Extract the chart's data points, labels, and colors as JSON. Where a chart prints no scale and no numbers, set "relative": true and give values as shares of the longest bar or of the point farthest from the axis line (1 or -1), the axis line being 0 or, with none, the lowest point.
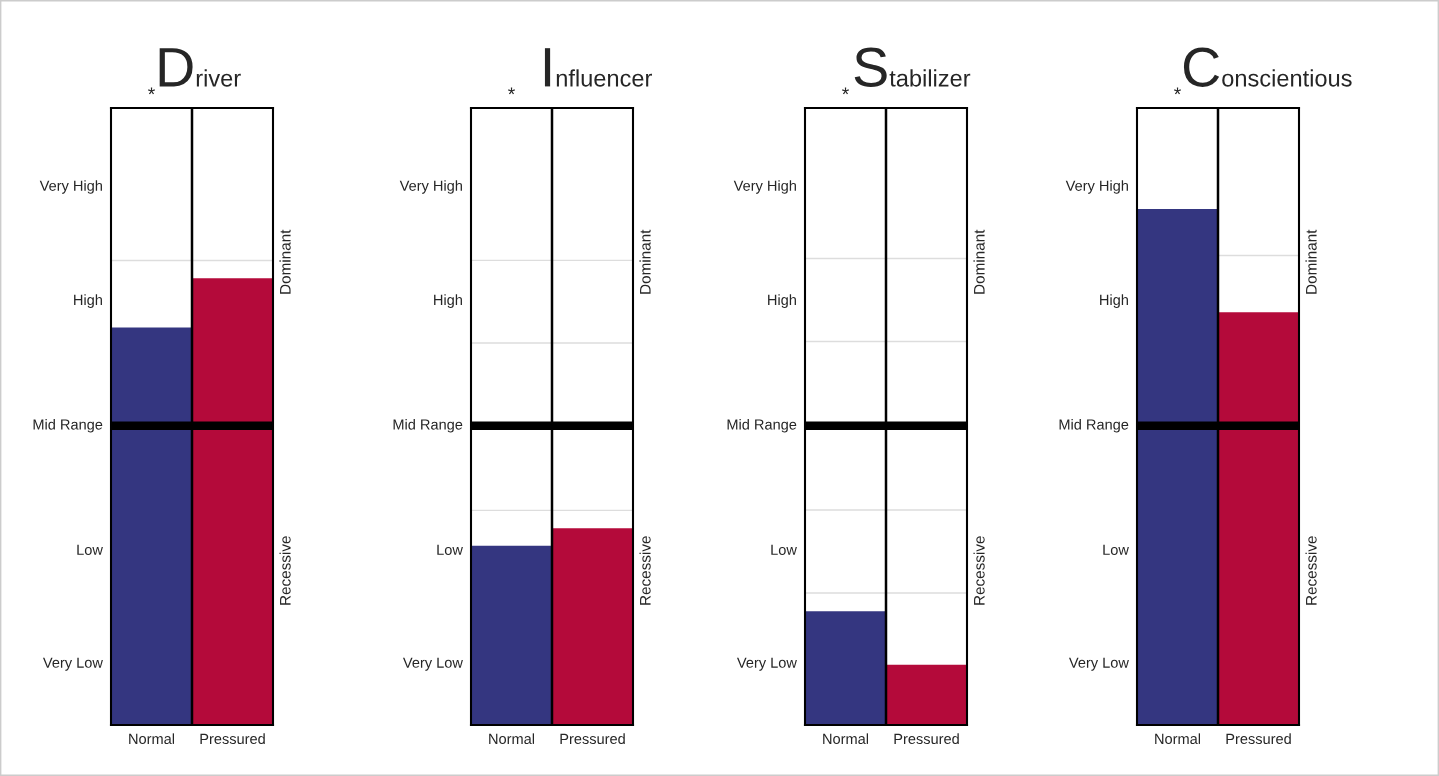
{
  "chart_data": [
    {
      "type": "bar",
      "title": "Driver",
      "categories": [
        "Normal",
        "Pressured"
      ],
      "values": [
        0.89,
        1
      ],
      "colors": [
        "#343680",
        "#b40a3a"
      ],
      "relative": true,
      "grid": false,
      "ref_lines": [
        {
          "axis": "y",
          "value": 1.04,
          "color": "#dddddd"
        },
        {
          "axis": "y",
          "value": 0.67,
          "color": "#000000"
        }
      ],
      "annotations": [
        "*",
        "Very High",
        "High",
        "Mid Range",
        "Low",
        "Very Low",
        "Dominant",
        "Recessive"
      ]
    },
    {
      "type": "bar",
      "title": "Influencer",
      "categories": [
        "Normal",
        "Pressured"
      ],
      "values": [
        0.91,
        1
      ],
      "colors": [
        "#343680",
        "#b40a3a"
      ],
      "relative": true,
      "grid": false,
      "ref_lines": [
        {
          "axis": "y",
          "value": 2.36,
          "color": "#dddddd"
        },
        {
          "axis": "y",
          "value": 1.94,
          "color": "#dddddd"
        },
        {
          "axis": "y",
          "value": 1.09,
          "color": "#dddddd"
        },
        {
          "axis": "y",
          "value": 1.52,
          "color": "#000000"
        }
      ],
      "annotations": [
        "*",
        "Very High",
        "High",
        "Mid Range",
        "Low",
        "Very Low",
        "Dominant",
        "Recessive"
      ]
    },
    {
      "type": "bar",
      "title": "Stabilizer",
      "categories": [
        "Normal",
        "Pressured"
      ],
      "values": [
        1,
        0.53
      ],
      "colors": [
        "#343680",
        "#b40a3a"
      ],
      "relative": true,
      "grid": false,
      "ref_lines": [
        {
          "axis": "y",
          "value": 4.1,
          "color": "#dddddd"
        },
        {
          "axis": "y",
          "value": 3.37,
          "color": "#dddddd"
        },
        {
          "axis": "y",
          "value": 1.89,
          "color": "#dddddd"
        },
        {
          "axis": "y",
          "value": 1.16,
          "color": "#dddddd"
        },
        {
          "axis": "y",
          "value": 2.63,
          "color": "#000000"
        }
      ],
      "annotations": [
        "*",
        "Very High",
        "High",
        "Mid Range",
        "Low",
        "Very Low",
        "Dominant",
        "Recessive"
      ]
    },
    {
      "type": "bar",
      "title": "Conscientious",
      "categories": [
        "Normal",
        "Pressured"
      ],
      "values": [
        1,
        0.8
      ],
      "colors": [
        "#343680",
        "#b40a3a"
      ],
      "relative": true,
      "grid": false,
      "ref_lines": [
        {
          "axis": "y",
          "value": 0.91,
          "color": "#dddddd"
        },
        {
          "axis": "y",
          "value": 0.58,
          "color": "#000000"
        }
      ],
      "annotations": [
        "*",
        "Very High",
        "High",
        "Mid Range",
        "Low",
        "Very Low",
        "Dominant",
        "Recessive"
      ]
    }
  ]
}
